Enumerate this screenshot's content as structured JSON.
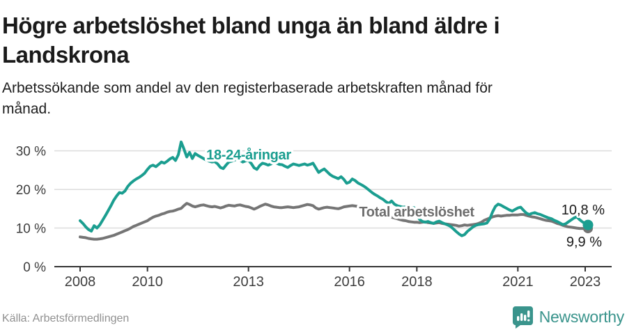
{
  "header": {
    "title_line1": "Högre arbetslöshet bland unga än bland äldre i",
    "title_line2": "Landskrona",
    "subtitle_line1": "Arbetssökande som andel av den registerbaserade arbetskraften månad för",
    "subtitle_line2": "månad."
  },
  "chart_data": {
    "type": "line",
    "x_start": "2008-01",
    "x_end": "2023-02",
    "frequency": "monthly",
    "unit": "%",
    "ylim": [
      0,
      33
    ],
    "yticks": [
      0,
      10,
      20,
      30
    ],
    "ytick_labels": [
      "0 %",
      "10 %",
      "20 %",
      "30 %"
    ],
    "xticks": [
      2008,
      2010,
      2013,
      2016,
      2018,
      2021,
      2023
    ],
    "grid": "horizontal",
    "legend_position": "inline-labels",
    "series": [
      {
        "name": "Total arbetslöshet",
        "color": "#757575",
        "label_color": "#6e6e6e",
        "end_value": 9.9,
        "end_label": "9,9 %",
        "values": [
          7.7,
          7.6,
          7.5,
          7.3,
          7.2,
          7.1,
          7.1,
          7.2,
          7.3,
          7.5,
          7.7,
          7.9,
          8.1,
          8.4,
          8.7,
          9.0,
          9.3,
          9.6,
          10.0,
          10.4,
          10.7,
          11.0,
          11.3,
          11.6,
          11.9,
          12.4,
          12.8,
          13.1,
          13.3,
          13.6,
          13.8,
          14.1,
          14.3,
          14.4,
          14.6,
          14.9,
          15.1,
          15.8,
          16.4,
          16.1,
          15.7,
          15.5,
          15.7,
          15.9,
          16.0,
          15.8,
          15.6,
          15.5,
          15.6,
          15.4,
          15.2,
          15.4,
          15.7,
          15.9,
          15.8,
          15.7,
          15.9,
          16.0,
          15.8,
          15.6,
          15.5,
          15.2,
          14.9,
          15.2,
          15.6,
          15.9,
          16.2,
          16.0,
          15.7,
          15.5,
          15.4,
          15.3,
          15.3,
          15.4,
          15.5,
          15.4,
          15.3,
          15.4,
          15.5,
          15.7,
          15.9,
          16.1,
          16.0,
          15.8,
          15.2,
          14.9,
          15.1,
          15.3,
          15.4,
          15.3,
          15.2,
          15.1,
          15.0,
          15.2,
          15.5,
          15.6,
          15.7,
          15.8,
          15.7,
          15.6,
          15.4,
          15.2,
          15.0,
          14.8,
          14.5,
          14.2,
          13.9,
          13.7,
          13.5,
          13.2,
          13.0,
          12.8,
          12.6,
          12.4,
          12.2,
          12.0,
          11.9,
          11.7,
          11.6,
          11.5,
          11.5,
          11.4,
          11.5,
          11.6,
          11.4,
          11.3,
          11.2,
          11.3,
          11.4,
          11.2,
          11.1,
          11.0,
          10.9,
          10.8,
          10.7,
          10.5,
          10.6,
          10.8,
          10.7,
          10.8,
          10.9,
          11.0,
          11.2,
          11.5,
          12.0,
          12.3,
          12.6,
          12.9,
          13.1,
          13.2,
          13.1,
          13.2,
          13.3,
          13.3,
          13.4,
          13.4,
          13.4,
          13.5,
          13.5,
          13.3,
          13.1,
          12.9,
          12.8,
          12.6,
          12.4,
          12.2,
          12.0,
          11.9,
          11.8,
          11.5,
          11.2,
          11.0,
          10.7,
          10.5,
          10.3,
          10.2,
          10.1,
          10.0,
          9.9,
          9.9,
          9.8,
          9.9
        ]
      },
      {
        "name": "18-24-åringar",
        "color": "#1b9e90",
        "label_color": "#1b9e90",
        "end_value": 10.8,
        "end_label": "10,8 %",
        "values": [
          11.9,
          11.2,
          10.3,
          9.6,
          9.2,
          10.6,
          10.0,
          10.8,
          12.0,
          13.2,
          14.5,
          15.8,
          17.2,
          18.3,
          19.2,
          19.0,
          19.6,
          20.8,
          21.6,
          22.2,
          22.7,
          23.1,
          23.6,
          24.2,
          25.2,
          26.0,
          26.3,
          25.9,
          26.5,
          27.1,
          26.8,
          27.3,
          27.9,
          28.3,
          27.5,
          29.0,
          32.3,
          30.5,
          28.4,
          29.6,
          28.0,
          29.3,
          28.8,
          28.4,
          28.0,
          27.6,
          27.3,
          27.1,
          27.2,
          26.6,
          25.7,
          25.4,
          26.3,
          27.1,
          27.3,
          27.6,
          27.8,
          27.5,
          27.1,
          27.4,
          27.5,
          26.7,
          25.6,
          25.2,
          26.2,
          26.8,
          26.6,
          26.3,
          26.6,
          27.0,
          26.8,
          26.5,
          26.4,
          26.0,
          25.7,
          26.2,
          26.6,
          26.4,
          26.2,
          26.4,
          26.6,
          26.3,
          26.5,
          26.8,
          25.6,
          24.4,
          24.9,
          25.3,
          24.6,
          23.9,
          23.4,
          23.1,
          22.8,
          23.3,
          22.6,
          21.6,
          21.9,
          22.7,
          22.3,
          21.7,
          21.3,
          20.9,
          20.4,
          19.8,
          19.2,
          18.7,
          18.3,
          17.8,
          17.4,
          16.8,
          16.4,
          17.0,
          16.2,
          15.8,
          15.6,
          15.4,
          15.5,
          15.3,
          15.2,
          15.3,
          13.5,
          12.2,
          11.7,
          11.5,
          11.7,
          11.4,
          11.2,
          11.6,
          11.8,
          11.4,
          11.1,
          10.8,
          10.4,
          9.8,
          9.1,
          8.5,
          8.0,
          8.3,
          9.1,
          9.7,
          10.3,
          10.7,
          10.9,
          11.0,
          11.1,
          11.3,
          12.4,
          14.2,
          15.6,
          16.2,
          15.9,
          15.5,
          15.1,
          14.7,
          14.4,
          14.8,
          15.2,
          15.4,
          14.6,
          13.9,
          13.5,
          13.8,
          14.0,
          13.7,
          13.5,
          13.2,
          12.9,
          12.6,
          12.4,
          12.0,
          11.7,
          11.3,
          10.9,
          11.1,
          11.6,
          12.1,
          12.6,
          12.9,
          12.2,
          11.6,
          11.2,
          10.8
        ]
      }
    ]
  },
  "footer": {
    "source": "Källa: Arbetsförmedlingen",
    "brand": "Newsworthy"
  },
  "colors": {
    "accent_teal": "#1b9e90",
    "line_gray": "#757575",
    "brand_teal": "#3a948c",
    "grid_gray": "#dcdcdc"
  }
}
